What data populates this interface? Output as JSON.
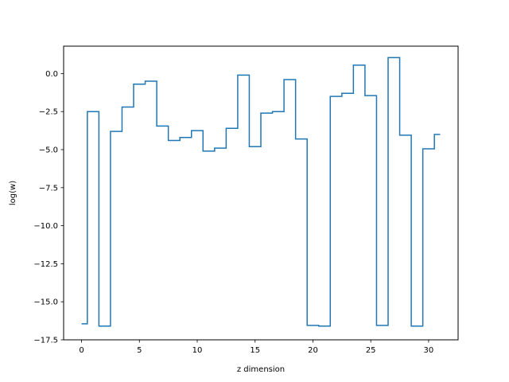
{
  "chart_data": {
    "type": "line",
    "drawstyle": "steps-mid",
    "title": "",
    "xlabel": "z dimension",
    "ylabel": "log(w)",
    "xlim": [
      -1.55,
      32.55
    ],
    "ylim": [
      -17.5,
      1.8
    ],
    "xticks": [
      0,
      5,
      10,
      15,
      20,
      25,
      30
    ],
    "yticks": [
      -17.5,
      -15.0,
      -12.5,
      -10.0,
      -7.5,
      -5.0,
      -2.5,
      0.0
    ],
    "ytick_labels": [
      "−17.5",
      "−15.0",
      "−12.5",
      "−10.0",
      "−7.5",
      "−5.0",
      "−2.5",
      "0.0"
    ],
    "grid": false,
    "series": [
      {
        "color": "#1f77b4",
        "x": [
          0,
          1,
          2,
          3,
          4,
          5,
          6,
          7,
          8,
          9,
          10,
          11,
          12,
          13,
          14,
          15,
          16,
          17,
          18,
          19,
          20,
          21,
          22,
          23,
          24,
          25,
          26,
          27,
          28,
          29,
          30,
          31
        ],
        "y": [
          -16.45,
          -2.5,
          -16.6,
          -3.8,
          -2.2,
          -0.7,
          -0.5,
          -3.45,
          -4.4,
          -4.2,
          -3.75,
          -5.1,
          -4.9,
          -3.6,
          -0.1,
          -4.8,
          -2.6,
          -2.5,
          -0.4,
          -4.3,
          -16.55,
          -16.6,
          -1.5,
          -1.3,
          0.55,
          -1.45,
          -16.55,
          1.05,
          -4.05,
          -16.6,
          -4.95,
          -4.0
        ]
      }
    ]
  }
}
